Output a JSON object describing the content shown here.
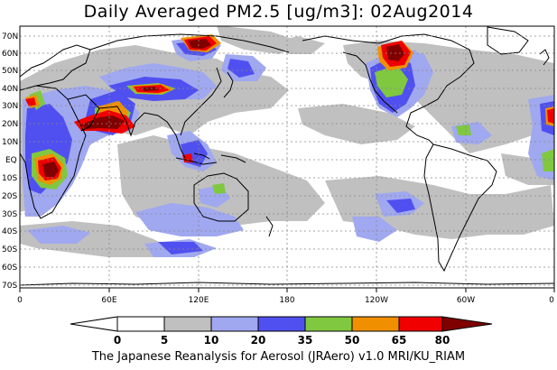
{
  "title": "Daily Averaged PM2.5 [ug/m3]: 02Aug2014",
  "credit": "The Japanese Reanalysis for Aerosol (JRAero) v1.0 MRI/KU_RIAM",
  "lat_labels": [
    "70N",
    "60N",
    "50N",
    "40N",
    "30N",
    "20N",
    "10N",
    "EQ",
    "10S",
    "20S",
    "30S",
    "40S",
    "50S",
    "60S",
    "70S"
  ],
  "lon_labels": [
    "0",
    "60E",
    "120E",
    "180",
    "120W",
    "60W",
    "0"
  ],
  "colorbar": {
    "breaks": [
      "0",
      "5",
      "10",
      "20",
      "35",
      "50",
      "65",
      "80"
    ],
    "colors": [
      "#ffffff",
      "#c0c0c0",
      "#a0a8f0",
      "#5050f0",
      "#80c840",
      "#f09000",
      "#f00000",
      "#800000"
    ]
  }
}
